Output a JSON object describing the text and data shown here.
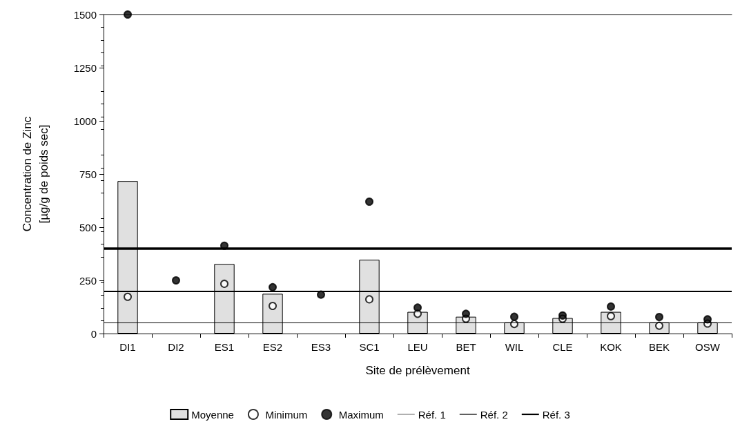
{
  "chart_data": {
    "type": "bar",
    "xlabel": "Site de prélèvement",
    "ylabel": "Concentration de Zinc\n[µg/g de poids sec]",
    "categories": [
      "DI1",
      "DI2",
      "ES1",
      "ES2",
      "ES3",
      "SC1",
      "LEU",
      "BET",
      "WIL",
      "CLE",
      "KOK",
      "BEK",
      "OSW"
    ],
    "series": [
      {
        "name": "Moyenne",
        "color": "#e0e0e0",
        "values": [
          717,
          null,
          327,
          187,
          null,
          347,
          102,
          79,
          53,
          73,
          102,
          53,
          53
        ]
      },
      {
        "name": "Minimum",
        "type": "scatter",
        "color": "#ffffff",
        "values": [
          173,
          null,
          234,
          130,
          null,
          161,
          93,
          70,
          45,
          70,
          82,
          37,
          47
        ]
      },
      {
        "name": "Maximum",
        "type": "scatter",
        "color": "#000000",
        "values": [
          1500,
          250,
          413,
          218,
          183,
          620,
          122,
          93,
          79,
          85,
          127,
          78,
          67
        ]
      }
    ],
    "ref_lines": [
      {
        "axis": "y",
        "value": 50,
        "label": "Réf. 1",
        "color": "#000000"
      },
      {
        "axis": "y",
        "value": 200,
        "label": "Réf. 2",
        "color": "#000000"
      },
      {
        "axis": "y",
        "value": 400,
        "label": "Réf. 3",
        "color": "#000000"
      }
    ],
    "ylim": [
      0,
      1500
    ],
    "yticks": [
      0,
      250,
      500,
      750,
      1000,
      1250,
      1500
    ],
    "marker": "circle",
    "grid": false,
    "legend": "bottom"
  }
}
